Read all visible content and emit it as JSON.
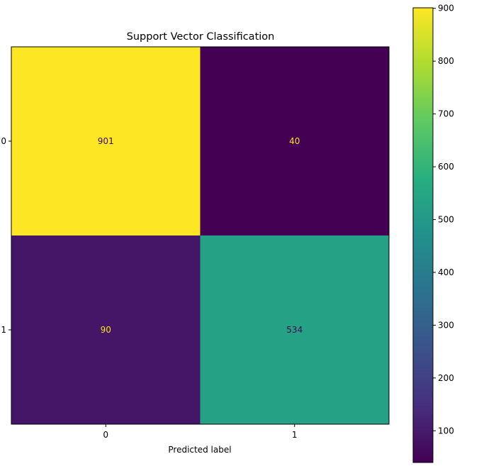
{
  "chart_data": {
    "type": "heatmap",
    "title": "Support Vector Classification",
    "xlabel": "Predicted label",
    "ylabel": "",
    "x_categories": [
      "0",
      "1"
    ],
    "y_categories": [
      "0",
      "1"
    ],
    "matrix": [
      [
        901,
        40
      ],
      [
        90,
        534
      ]
    ],
    "colormap": "viridis",
    "colorbar": {
      "min": 40,
      "max": 901,
      "ticks": [
        100,
        200,
        300,
        400,
        500,
        600,
        700,
        800,
        900
      ]
    },
    "grid": false
  }
}
